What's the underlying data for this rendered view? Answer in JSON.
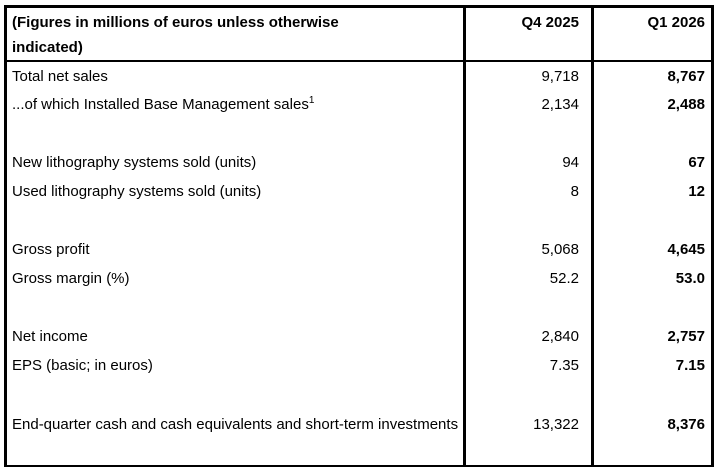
{
  "page": {
    "background": "#ffffff",
    "border_color": "#000000",
    "text_color": "#000000"
  },
  "table": {
    "header": {
      "label_line1": "(Figures in millions of euros unless otherwise",
      "label_line2": "indicated)",
      "q4_column": "Q4 2025",
      "q1_column": "Q1 2026"
    },
    "rows": [
      {
        "label": "Total net sales",
        "q4_2025": "9,718",
        "q1_2026": "8,767"
      },
      {
        "label": "...of which Installed Base Management sales",
        "label_superscript": "1",
        "q4_2025": "2,134",
        "q1_2026": "2,488"
      },
      {
        "label": "",
        "q4_2025": "",
        "q1_2026": ""
      },
      {
        "label": "New lithography systems sold (units)",
        "q4_2025": "94",
        "q1_2026": "67"
      },
      {
        "label": "Used lithography systems sold (units)",
        "q4_2025": "8",
        "q1_2026": "12"
      },
      {
        "label": "",
        "q4_2025": "",
        "q1_2026": ""
      },
      {
        "label": "Gross profit",
        "q4_2025": "5,068",
        "q1_2026": "4,645"
      },
      {
        "label": "Gross margin (%)",
        "q4_2025": "52.2",
        "q1_2026": "53.0"
      },
      {
        "label": "",
        "q4_2025": "",
        "q1_2026": ""
      },
      {
        "label": "Net income",
        "q4_2025": "2,840",
        "q1_2026": "2,757"
      },
      {
        "label": "EPS (basic; in euros)",
        "q4_2025": "7.35",
        "q1_2026": "7.15"
      },
      {
        "label": "",
        "q4_2025": "",
        "q1_2026": ""
      },
      {
        "label": "End-quarter cash and cash equivalents and short-term investments",
        "q4_2025": "13,322",
        "q1_2026": "8,376"
      }
    ]
  }
}
